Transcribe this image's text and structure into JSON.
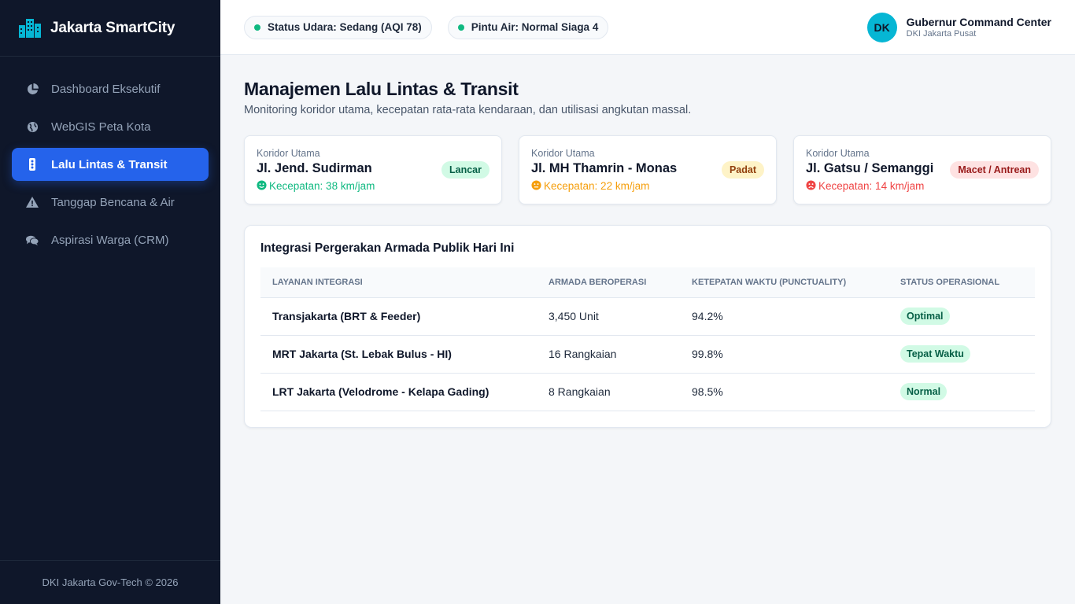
{
  "brand": {
    "name": "Jakarta SmartCity",
    "icon": "city-buildings-icon"
  },
  "nav": [
    {
      "label": "Dashboard Eksekutif",
      "icon": "pie-chart-icon",
      "active": false
    },
    {
      "label": "WebGIS Peta Kota",
      "icon": "globe-icon",
      "active": false
    },
    {
      "label": "Lalu Lintas & Transit",
      "icon": "traffic-light-icon",
      "active": true
    },
    {
      "label": "Tanggap Bencana & Air",
      "icon": "warning-triangle-icon",
      "active": false
    },
    {
      "label": "Aspirasi Warga (CRM)",
      "icon": "chat-bubbles-icon",
      "active": false
    }
  ],
  "footer": "DKI Jakarta Gov-Tech © 2026",
  "topbar": {
    "pills": [
      {
        "text": "Status Udara: Sedang (AQI 78)"
      },
      {
        "text": "Pintu Air: Normal Siaga 4"
      }
    ],
    "user": {
      "initials": "DK",
      "name": "Gubernur Command Center",
      "sub": "DKI Jakarta Pusat"
    }
  },
  "page": {
    "title": "Manajemen Lalu Lintas & Transit",
    "subtitle": "Monitoring koridor utama, kecepatan rata-rata kendaraan, dan utilisasi angkutan massal."
  },
  "corridors": [
    {
      "label": "Koridor Utama",
      "name": "Jl. Jend. Sudirman",
      "speed": "Kecepatan: 38 km/jam",
      "badge": "Lancar",
      "color": "#10b981",
      "badge_bg": "#d1fae5",
      "badge_fg": "#065f46",
      "icon": "smile-icon"
    },
    {
      "label": "Koridor Utama",
      "name": "Jl. MH Thamrin - Monas",
      "speed": "Kecepatan: 22 km/jam",
      "badge": "Padat",
      "color": "#f59e0b",
      "badge_bg": "#fef3c7",
      "badge_fg": "#92400e",
      "icon": "neutral-face-icon"
    },
    {
      "label": "Koridor Utama",
      "name": "Jl. Gatsu / Semanggi",
      "speed": "Kecepatan: 14 km/jam",
      "badge": "Macet / Antrean",
      "color": "#ef4444",
      "badge_bg": "#fee2e2",
      "badge_fg": "#991b1b",
      "icon": "sad-face-icon"
    }
  ],
  "fleet": {
    "title": "Integrasi Pergerakan Armada Publik Hari Ini",
    "headers": [
      "LAYANAN INTEGRASI",
      "ARMADA BEROPERASI",
      "KETEPATAN WAKTU (PUNCTUALITY)",
      "STATUS OPERASIONAL"
    ],
    "rows": [
      {
        "service": "Transjakarta (BRT & Feeder)",
        "fleet": "3,450 Unit",
        "punctuality": "94.2%",
        "status": "Optimal"
      },
      {
        "service": "MRT Jakarta (St. Lebak Bulus - HI)",
        "fleet": "16 Rangkaian",
        "punctuality": "99.8%",
        "status": "Tepat Waktu"
      },
      {
        "service": "LRT Jakarta (Velodrome - Kelapa Gading)",
        "fleet": "8 Rangkaian",
        "punctuality": "98.5%",
        "status": "Normal"
      }
    ]
  }
}
